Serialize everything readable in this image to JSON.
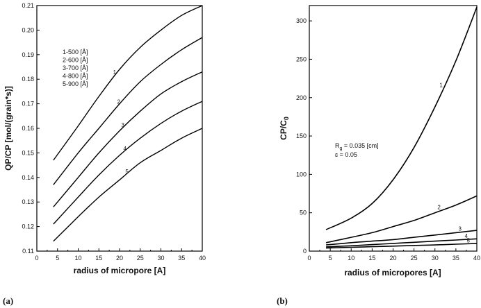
{
  "chart_data": [
    {
      "panel": "(a)",
      "type": "line",
      "xlabel": "radius of micropore [A]",
      "ylabel": "QP/CP [mol/(grain*s)]",
      "xlim": [
        0,
        40
      ],
      "ylim": [
        0.11,
        0.21
      ],
      "xticks": [
        "0",
        "5",
        "10",
        "15",
        "20",
        "25",
        "30",
        "35",
        "40"
      ],
      "yticks": [
        "0.11",
        "0.12",
        "0.13",
        "0.14",
        "0.15",
        "0.16",
        "0.17",
        "0.18",
        "0.19",
        "0.20",
        "0.21"
      ],
      "x": [
        4,
        10,
        15,
        20,
        25,
        30,
        35,
        40
      ],
      "series": [
        {
          "name": "1",
          "values": [
            0.147,
            0.161,
            0.173,
            0.184,
            0.193,
            0.2,
            0.206,
            0.21
          ],
          "label_x": 19.5
        },
        {
          "name": "2",
          "values": [
            0.137,
            0.15,
            0.16,
            0.17,
            0.179,
            0.186,
            0.192,
            0.197
          ],
          "label_x": 20.5
        },
        {
          "name": "3",
          "values": [
            0.128,
            0.14,
            0.15,
            0.159,
            0.167,
            0.174,
            0.179,
            0.183
          ],
          "label_x": 21.5
        },
        {
          "name": "4",
          "values": [
            0.121,
            0.132,
            0.141,
            0.149,
            0.156,
            0.162,
            0.167,
            0.171
          ],
          "label_x": 22
        },
        {
          "name": "5",
          "values": [
            0.114,
            0.124,
            0.132,
            0.139,
            0.146,
            0.151,
            0.156,
            0.16
          ],
          "label_x": 22.5
        }
      ],
      "legend_lines": [
        "1-500 [Å]",
        "2-600 [Å]",
        "3-700 [Å]",
        "4-800 [Å]",
        "5-900 [Å]"
      ]
    },
    {
      "panel": "(b)",
      "type": "line",
      "xlabel": "radius of micropores [A]",
      "ylabel_main": "CP/C",
      "ylabel_sub": "0",
      "xlim": [
        0,
        40
      ],
      "ylim": [
        0,
        320
      ],
      "xticks": [
        "0",
        "5",
        "10",
        "15",
        "20",
        "25",
        "30",
        "35",
        "40"
      ],
      "yticks": [
        "0",
        "50",
        "100",
        "150",
        "200",
        "250",
        "300"
      ],
      "x": [
        4,
        10,
        15,
        20,
        25,
        30,
        35,
        40
      ],
      "series": [
        {
          "name": "1",
          "values": [
            28,
            43,
            62,
            93,
            135,
            188,
            248,
            318
          ],
          "label_x": 32
        },
        {
          "name": "2",
          "values": [
            11,
            18,
            24,
            32,
            40,
            50,
            60,
            72
          ],
          "label_x": 31.5
        },
        {
          "name": "3",
          "values": [
            8,
            11,
            13,
            15,
            18,
            21,
            24,
            27
          ],
          "label_x": 36.5
        },
        {
          "name": "4",
          "values": [
            5.5,
            7,
            8.5,
            10,
            11.5,
            13,
            14.5,
            16
          ],
          "label_x": 38
        },
        {
          "name": "5",
          "values": [
            4,
            5,
            5.8,
            6.5,
            7.3,
            8,
            9,
            10
          ],
          "label_x": 38.5
        }
      ],
      "annotation_main": "R",
      "annotation_sub": "g",
      "annotation_rest": " = 0.035 [cm]",
      "annotation_line2": "ɛ = 0.05"
    }
  ]
}
